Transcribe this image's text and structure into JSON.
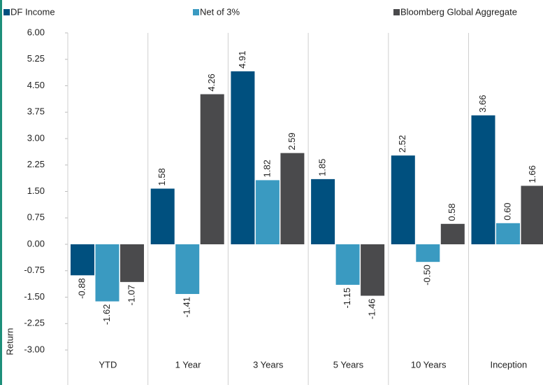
{
  "chart_data": {
    "type": "bar",
    "categories": [
      "YTD",
      "1 Year",
      "3 Years",
      "5 Years",
      "10 Years",
      "Inception"
    ],
    "series": [
      {
        "name": "DF Income",
        "color": "#00507f",
        "values": [
          -0.88,
          1.58,
          4.91,
          1.85,
          2.52,
          3.66
        ],
        "value_labels": [
          "-0.88",
          "1.58",
          "4.91",
          "1.85",
          "2.52",
          "3.66"
        ]
      },
      {
        "name": "Net of 3%",
        "color": "#3a9ac1",
        "values": [
          -1.62,
          -1.41,
          1.82,
          -1.15,
          -0.5,
          0.6
        ],
        "value_labels": [
          "-1.62",
          "-1.41",
          "1.82",
          "-1.15",
          "-0.50",
          "0.60"
        ]
      },
      {
        "name": "Bloomberg Global Aggregate",
        "color": "#4a4a4c",
        "values": [
          -1.07,
          4.26,
          2.59,
          -1.46,
          0.58,
          1.66
        ],
        "value_labels": [
          "-1.07",
          "4.26",
          "2.59",
          "-1.46",
          "0.58",
          "1.66"
        ]
      }
    ],
    "y_label": "Return",
    "ylim": [
      -3,
      6
    ],
    "yticks": [
      {
        "value": 6,
        "label": "6.00"
      },
      5.25,
      {
        "value": 4.5,
        "label": "4.50"
      },
      3.75,
      {
        "value": 3,
        "label": "3.00"
      },
      2.25,
      {
        "value": 1.5,
        "label": "1.50"
      },
      0.75,
      {
        "value": 0,
        "label": "0.00"
      },
      -0.75,
      {
        "value": -1.5,
        "label": "-1.50"
      },
      -2.25,
      {
        "value": -3,
        "label": "-3.00"
      }
    ],
    "legend": "top"
  }
}
